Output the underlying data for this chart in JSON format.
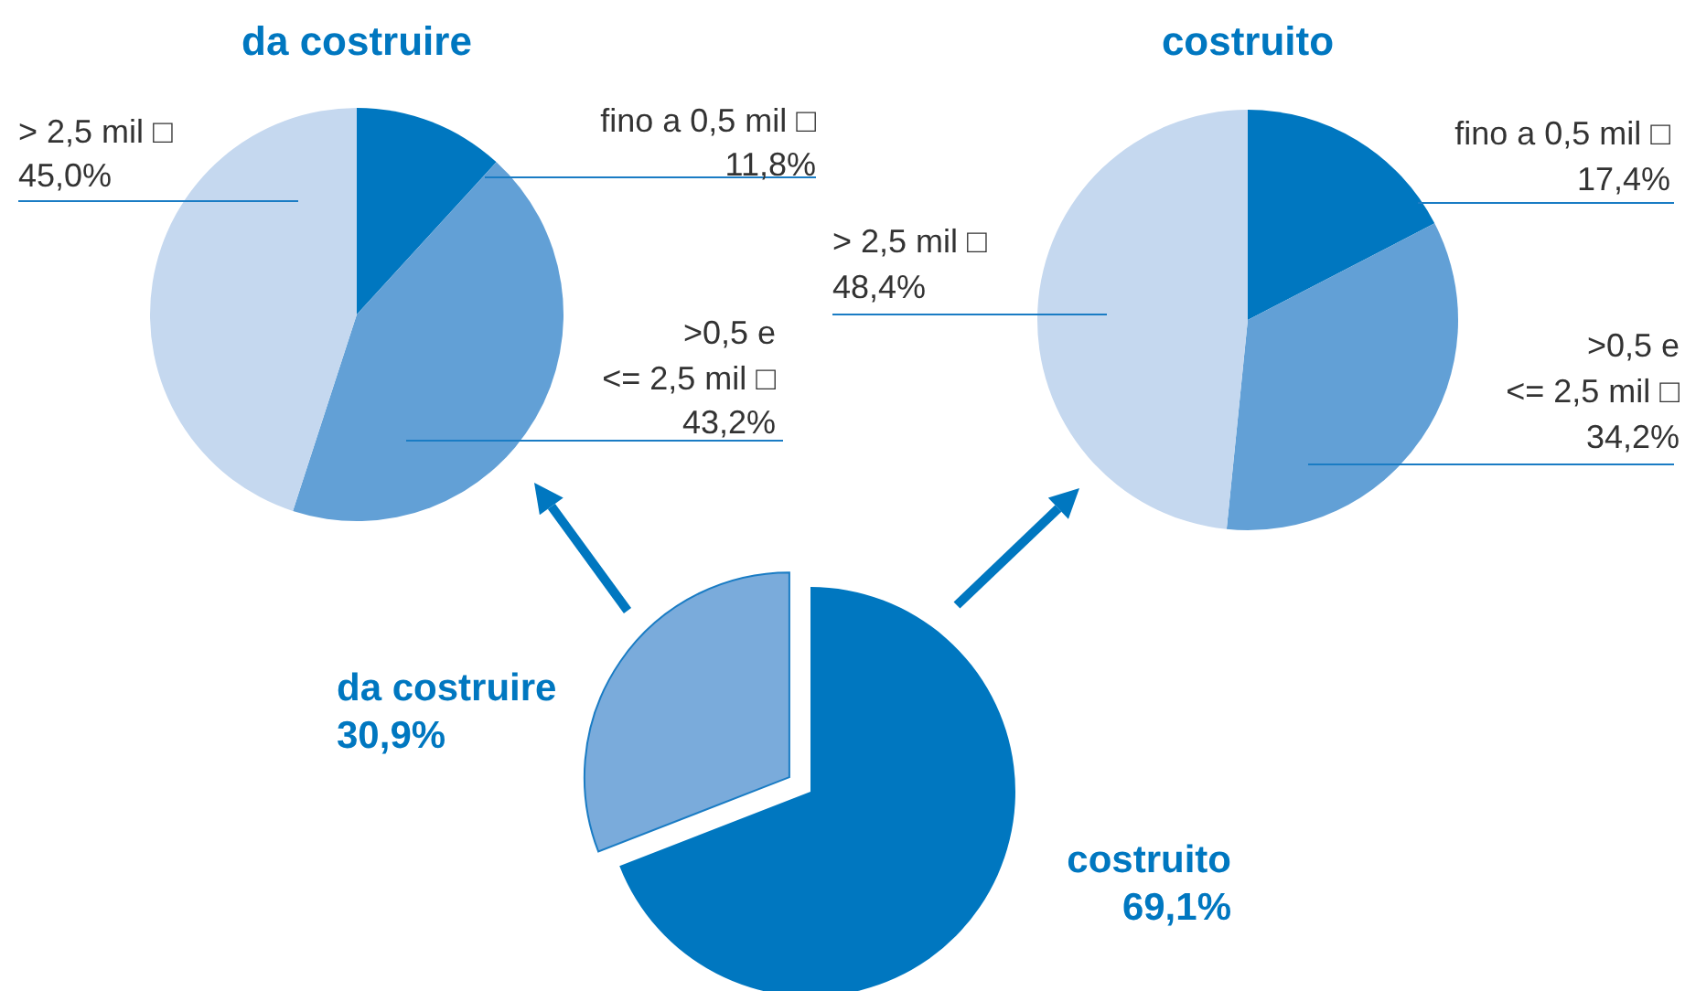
{
  "chart_data": [
    {
      "type": "pie",
      "title": "da costruire",
      "categories": [
        "fino a 0,5 mil □",
        ">0,5 e\n<= 2,5 mil □",
        "> 2,5 mil □"
      ],
      "values": [
        11.8,
        43.2,
        45.0
      ],
      "value_labels": [
        "11,8%",
        "43,2%",
        "45,0%"
      ],
      "colors": [
        "#0077c0",
        "#62a0d6",
        "#c5d8ef"
      ]
    },
    {
      "type": "pie",
      "title": "costruito",
      "categories": [
        "fino a 0,5 mil □",
        ">0,5 e\n<= 2,5 mil □",
        "> 2,5 mil □"
      ],
      "values": [
        17.4,
        34.2,
        48.4
      ],
      "value_labels": [
        "17,4%",
        "34,2%",
        "48,4%"
      ],
      "colors": [
        "#0077c0",
        "#62a0d6",
        "#c5d8ef"
      ]
    },
    {
      "type": "pie",
      "categories": [
        "da costruire",
        "costruito"
      ],
      "values": [
        30.9,
        69.1
      ],
      "value_labels": [
        "30,9%",
        "69,1%"
      ],
      "colors": [
        "#7aabdb",
        "#0077c0"
      ]
    }
  ]
}
